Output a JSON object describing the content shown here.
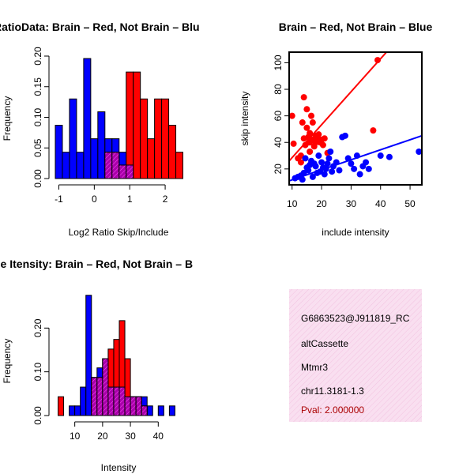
{
  "chart_data": [
    {
      "type": "bar",
      "title": "RatioData: Brain – Red, Not Brain – Blu",
      "xlabel": "Log2 Ratio Skip/Include",
      "ylabel": "Frequency",
      "xlim": [
        -1.1,
        2.6
      ],
      "ylim": [
        0,
        0.2
      ],
      "xticks": [
        "-1",
        "0",
        "1",
        "2"
      ],
      "yticks": [
        "0.00",
        "0.05",
        "0.10",
        "0.15",
        "0.20"
      ],
      "bin_width": 0.2,
      "series": [
        {
          "name": "Not Brain",
          "color": "#0000ff",
          "bins": [
            {
              "x0": -1.1,
              "v": 0.087
            },
            {
              "x0": -0.9,
              "v": 0.043
            },
            {
              "x0": -0.7,
              "v": 0.13
            },
            {
              "x0": -0.5,
              "v": 0.043
            },
            {
              "x0": -0.3,
              "v": 0.196
            },
            {
              "x0": -0.1,
              "v": 0.065
            },
            {
              "x0": 0.1,
              "v": 0.109
            },
            {
              "x0": 0.3,
              "v": 0.065
            },
            {
              "x0": 0.5,
              "v": 0.065
            },
            {
              "x0": 0.7,
              "v": 0.043
            },
            {
              "x0": 0.9,
              "v": 0.022
            }
          ]
        },
        {
          "name": "Brain",
          "color": "#ff0000",
          "bins": [
            {
              "x0": 0.3,
              "v": 0.043
            },
            {
              "x0": 0.5,
              "v": 0.043
            },
            {
              "x0": 0.7,
              "v": 0.022
            },
            {
              "x0": 0.9,
              "v": 0.174
            },
            {
              "x0": 1.1,
              "v": 0.174
            },
            {
              "x0": 1.3,
              "v": 0.13
            },
            {
              "x0": 1.5,
              "v": 0.065
            },
            {
              "x0": 1.7,
              "v": 0.13
            },
            {
              "x0": 1.9,
              "v": 0.13
            },
            {
              "x0": 2.1,
              "v": 0.087
            },
            {
              "x0": 2.3,
              "v": 0.043
            }
          ]
        }
      ],
      "overlap_color": "#aa00aa"
    },
    {
      "type": "scatter",
      "title": "Brain – Red, Not Brain – Blue",
      "xlabel": "include intensity",
      "ylabel": "skip intensity",
      "xlim": [
        9,
        54
      ],
      "ylim": [
        8,
        108
      ],
      "xticks": [
        "10",
        "20",
        "30",
        "40",
        "50"
      ],
      "yticks": [
        "20",
        "40",
        "60",
        "80",
        "100"
      ],
      "series": [
        {
          "name": "Brain",
          "color": "#ff0000",
          "points": [
            [
              10,
              60
            ],
            [
              10.5,
              39
            ],
            [
              12,
              28
            ],
            [
              13,
              25
            ],
            [
              13.5,
              55
            ],
            [
              14,
              74
            ],
            [
              14,
              43
            ],
            [
              14.5,
              38
            ],
            [
              15,
              65
            ],
            [
              15,
              51
            ],
            [
              15.5,
              44
            ],
            [
              16,
              47
            ],
            [
              16,
              40
            ],
            [
              16.5,
              60
            ],
            [
              17,
              55
            ],
            [
              17,
              42
            ],
            [
              17.5,
              37
            ],
            [
              18,
              45
            ],
            [
              18,
              40
            ],
            [
              18.5,
              43
            ],
            [
              19,
              46
            ],
            [
              19.5,
              40
            ],
            [
              20,
              42
            ],
            [
              20.5,
              38
            ],
            [
              21,
              43
            ],
            [
              22,
              32
            ],
            [
              37.5,
              49
            ],
            [
              39,
              102
            ],
            [
              16,
              33
            ],
            [
              13,
              30
            ]
          ],
          "fit": [
            [
              9,
              26
            ],
            [
              42,
              108
            ]
          ]
        },
        {
          "name": "Not Brain",
          "color": "#0000ff",
          "points": [
            [
              11,
              13
            ],
            [
              12,
              14
            ],
            [
              13,
              15
            ],
            [
              13.5,
              12
            ],
            [
              14,
              17
            ],
            [
              14.5,
              28
            ],
            [
              15,
              21
            ],
            [
              15.5,
              19
            ],
            [
              16,
              23
            ],
            [
              16.5,
              26
            ],
            [
              17,
              14
            ],
            [
              17.5,
              24
            ],
            [
              18,
              22
            ],
            [
              18.5,
              17
            ],
            [
              19,
              30
            ],
            [
              19.5,
              18
            ],
            [
              20,
              25
            ],
            [
              20.5,
              21
            ],
            [
              21,
              16
            ],
            [
              21.5,
              20
            ],
            [
              22,
              24
            ],
            [
              22.5,
              28
            ],
            [
              23,
              33
            ],
            [
              23.5,
              18
            ],
            [
              24,
              22
            ],
            [
              25,
              25
            ],
            [
              26,
              19
            ],
            [
              27,
              44
            ],
            [
              28,
              45
            ],
            [
              29,
              28
            ],
            [
              30,
              24
            ],
            [
              31,
              20
            ],
            [
              32,
              30
            ],
            [
              33,
              16
            ],
            [
              34,
              22
            ],
            [
              35,
              25
            ],
            [
              36,
              20
            ],
            [
              40,
              30
            ],
            [
              43,
              29
            ],
            [
              53,
              33
            ]
          ],
          "fit": [
            [
              9,
              11
            ],
            [
              54,
              45
            ]
          ]
        }
      ]
    },
    {
      "type": "bar",
      "title": "ne Itensity: Brain – Red, Not Brain – B",
      "xlabel": "Intensity",
      "ylabel": "Frequency",
      "xlim": [
        3,
        49
      ],
      "ylim": [
        0,
        0.28
      ],
      "xticks": [
        "10",
        "20",
        "30",
        "40"
      ],
      "yticks": [
        "0.00",
        "0.10",
        "0.20"
      ],
      "bin_width": 2,
      "series": [
        {
          "name": "Not Brain",
          "color": "#0000ff",
          "bins": [
            {
              "x0": 8,
              "v": 0.022
            },
            {
              "x0": 10,
              "v": 0.022
            },
            {
              "x0": 12,
              "v": 0.065
            },
            {
              "x0": 14,
              "v": 0.275
            },
            {
              "x0": 16,
              "v": 0.087
            },
            {
              "x0": 18,
              "v": 0.109
            },
            {
              "x0": 20,
              "v": 0.13
            },
            {
              "x0": 22,
              "v": 0.065
            },
            {
              "x0": 24,
              "v": 0.065
            },
            {
              "x0": 26,
              "v": 0.065
            },
            {
              "x0": 28,
              "v": 0.043
            },
            {
              "x0": 30,
              "v": 0.043
            },
            {
              "x0": 32,
              "v": 0.043
            },
            {
              "x0": 34,
              "v": 0.043
            },
            {
              "x0": 36,
              "v": 0.022
            },
            {
              "x0": 40,
              "v": 0.022
            },
            {
              "x0": 44,
              "v": 0.022
            }
          ]
        },
        {
          "name": "Brain",
          "color": "#ff0000",
          "bins": [
            {
              "x0": 4,
              "v": 0.043
            },
            {
              "x0": 16,
              "v": 0.087
            },
            {
              "x0": 18,
              "v": 0.087
            },
            {
              "x0": 20,
              "v": 0.13
            },
            {
              "x0": 22,
              "v": 0.152
            },
            {
              "x0": 24,
              "v": 0.174
            },
            {
              "x0": 26,
              "v": 0.217
            },
            {
              "x0": 28,
              "v": 0.13
            },
            {
              "x0": 30,
              "v": 0.043
            },
            {
              "x0": 32,
              "v": 0.043
            },
            {
              "x0": 34,
              "v": 0.022
            }
          ]
        }
      ],
      "overlap_color": "#aa00aa"
    }
  ],
  "info_box": {
    "lines": [
      "G6863523@J911819_RC",
      "altCassette",
      "Mtmr3",
      "chr11.3181-1.3"
    ],
    "pval": "Pval: 2.000000",
    "background": "#f9dff0"
  }
}
